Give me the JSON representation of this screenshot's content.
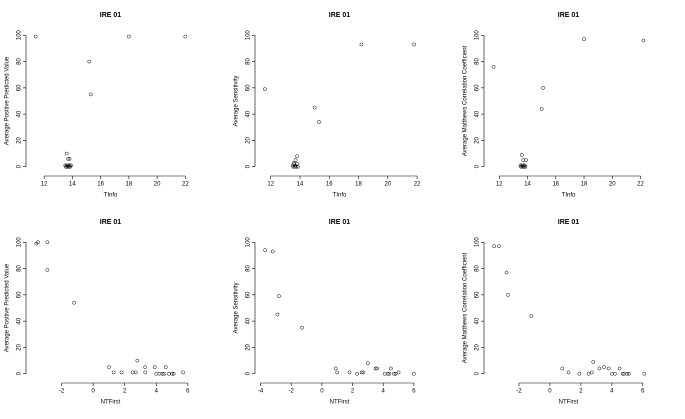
{
  "chart_data": [
    {
      "type": "scatter",
      "title": "IRE 01",
      "xlabel": "TInfo",
      "ylabel": "Average Positive Predicted Value",
      "x": [
        11.4,
        13.6,
        13.7,
        13.8,
        13.5,
        13.55,
        13.6,
        13.65,
        13.7,
        13.75,
        13.8,
        13.85,
        13.9,
        15.2,
        15.3,
        18.0,
        22.0
      ],
      "values": [
        99,
        10,
        6,
        6,
        1,
        0,
        1,
        0,
        1,
        0,
        1,
        0,
        1,
        80,
        55,
        99,
        99
      ],
      "xlim": [
        11.0,
        22.4
      ],
      "ylim": [
        -4,
        104
      ],
      "xticks": [
        12,
        14,
        16,
        18,
        20,
        22
      ],
      "yticks": [
        0,
        20,
        40,
        60,
        80,
        100
      ]
    },
    {
      "type": "scatter",
      "title": "IRE 01",
      "xlabel": "TInfo",
      "ylabel": "Average Sensitivity",
      "x": [
        11.6,
        13.6,
        13.7,
        13.8,
        13.5,
        13.55,
        13.6,
        13.65,
        13.7,
        13.75,
        13.8,
        13.85,
        15.0,
        15.3,
        18.2,
        21.8
      ],
      "values": [
        59,
        3,
        5,
        8,
        1,
        0,
        2,
        0,
        1,
        0,
        2,
        0,
        45,
        34,
        93,
        93
      ],
      "xlim": [
        11.2,
        22.2
      ],
      "ylim": [
        -4,
        104
      ],
      "xticks": [
        12,
        14,
        16,
        18,
        20,
        22
      ],
      "yticks": [
        0,
        20,
        40,
        60,
        80,
        100
      ]
    },
    {
      "type": "scatter",
      "title": "IRE 01",
      "xlabel": "TInfo",
      "ylabel": "Average Matthews Correlation Coefficient",
      "x": [
        11.6,
        13.6,
        13.7,
        13.9,
        13.5,
        13.55,
        13.6,
        13.65,
        13.7,
        13.75,
        13.8,
        13.85,
        15.1,
        15.0,
        18.0,
        22.2
      ],
      "values": [
        76,
        9,
        5,
        5,
        1,
        0,
        1,
        0,
        1,
        0,
        1,
        0,
        60,
        44,
        97,
        96
      ],
      "xlim": [
        11.2,
        22.6
      ],
      "ylim": [
        -4,
        104
      ],
      "xticks": [
        12,
        14,
        16,
        18,
        20,
        22
      ],
      "yticks": [
        0,
        20,
        40,
        60,
        80,
        100
      ]
    },
    {
      "type": "scatter",
      "title": "IRE 01",
      "xlabel": "NTFirst",
      "ylabel": "Average Positive Predicted Value",
      "x": [
        -3.6,
        -3.5,
        -2.9,
        -2.9,
        -1.2,
        1.0,
        1.3,
        1.8,
        2.5,
        2.8,
        2.7,
        3.3,
        3.3,
        3.9,
        4.0,
        4.2,
        4.4,
        4.6,
        4.5,
        4.8,
        5.0,
        5.1,
        5.7
      ],
      "values": [
        99,
        100,
        100,
        79,
        54,
        5,
        1,
        1,
        1,
        10,
        1,
        5,
        1,
        5,
        0,
        0,
        0,
        5,
        0,
        0,
        0,
        0,
        1
      ],
      "xlim": [
        -4.0,
        6.2
      ],
      "ylim": [
        -4,
        104
      ],
      "xticks": [
        -2,
        0,
        2,
        4,
        6
      ],
      "yticks": [
        0,
        20,
        40,
        60,
        80,
        100
      ]
    },
    {
      "type": "scatter",
      "title": "IRE 01",
      "xlabel": "NTFirst",
      "ylabel": "Average Sensitivity",
      "x": [
        -3.7,
        -3.2,
        -2.8,
        -2.9,
        -1.3,
        0.9,
        1.0,
        1.8,
        2.3,
        2.6,
        2.7,
        3.0,
        3.5,
        3.6,
        4.1,
        4.3,
        4.4,
        4.5,
        4.7,
        4.8,
        5.0,
        6.0
      ],
      "values": [
        94,
        93,
        59,
        45,
        35,
        4,
        1,
        1,
        0,
        1,
        1,
        8,
        4,
        4,
        0,
        0,
        0,
        4,
        0,
        0,
        1,
        0
      ],
      "xlim": [
        -4.1,
        6.4
      ],
      "ylim": [
        -4,
        104
      ],
      "xticks": [
        -4,
        -2,
        0,
        2,
        4,
        6
      ],
      "yticks": [
        0,
        20,
        40,
        60,
        80,
        100
      ]
    },
    {
      "type": "scatter",
      "title": "IRE 01",
      "xlabel": "NTFirst",
      "ylabel": "Average Matthews Correlation Coefficient",
      "x": [
        -3.6,
        -3.3,
        -2.8,
        -2.7,
        -1.2,
        0.8,
        1.2,
        1.9,
        2.5,
        2.7,
        2.8,
        3.2,
        3.5,
        3.8,
        4.0,
        4.2,
        4.5,
        4.7,
        4.8,
        5.0,
        5.1,
        6.1
      ],
      "values": [
        97,
        97,
        77,
        60,
        44,
        4,
        1,
        0,
        0,
        1,
        9,
        4,
        5,
        4,
        0,
        0,
        4,
        0,
        0,
        0,
        0,
        0
      ],
      "xlim": [
        -4.0,
        6.4
      ],
      "ylim": [
        -4,
        104
      ],
      "xticks": [
        -2,
        0,
        2,
        4,
        6
      ],
      "yticks": [
        0,
        20,
        40,
        60,
        80,
        100
      ]
    }
  ]
}
